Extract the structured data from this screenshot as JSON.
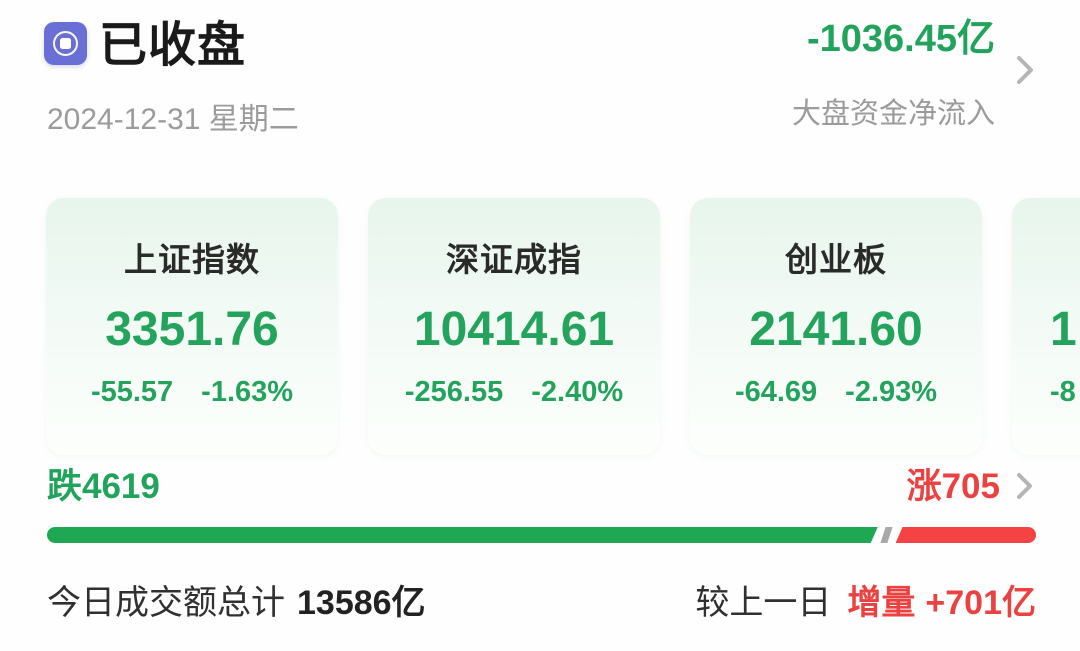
{
  "header": {
    "status_title": "已收盘",
    "date": "2024-12-31 星期二",
    "net_flow_value": "-1036.45亿",
    "net_flow_label": "大盘资金净流入"
  },
  "indices": [
    {
      "name": "上证指数",
      "value": "3351.76",
      "change": "-55.57",
      "pct": "-1.63%"
    },
    {
      "name": "深证成指",
      "value": "10414.61",
      "change": "-256.55",
      "pct": "-2.40%"
    },
    {
      "name": "创业板",
      "value": "2141.60",
      "change": "-64.69",
      "pct": "-2.93%"
    },
    {
      "name": "",
      "value": "1",
      "change": "-8",
      "pct": ""
    }
  ],
  "breadth": {
    "fallers_label": "跌4619",
    "risers_label": "涨705",
    "fall_count": 4619,
    "rise_count": 705,
    "bar_green_pct": 84.0,
    "bar_red_left_pct": 85.8
  },
  "footer": {
    "turnover_label": "今日成交额总计",
    "turnover_value": "13586亿",
    "compare_label": "较上一日",
    "delta_label": "增量",
    "delta_value": "+701亿"
  },
  "colors": {
    "down_green_text": "#23a35c",
    "up_red_text": "#ec4141",
    "bar_green": "#1fa853",
    "bar_red": "#f54242",
    "divider_gray": "#a9a9a9",
    "label_gray": "#9b9b9b",
    "icon_purple": "#6a6fd6"
  }
}
